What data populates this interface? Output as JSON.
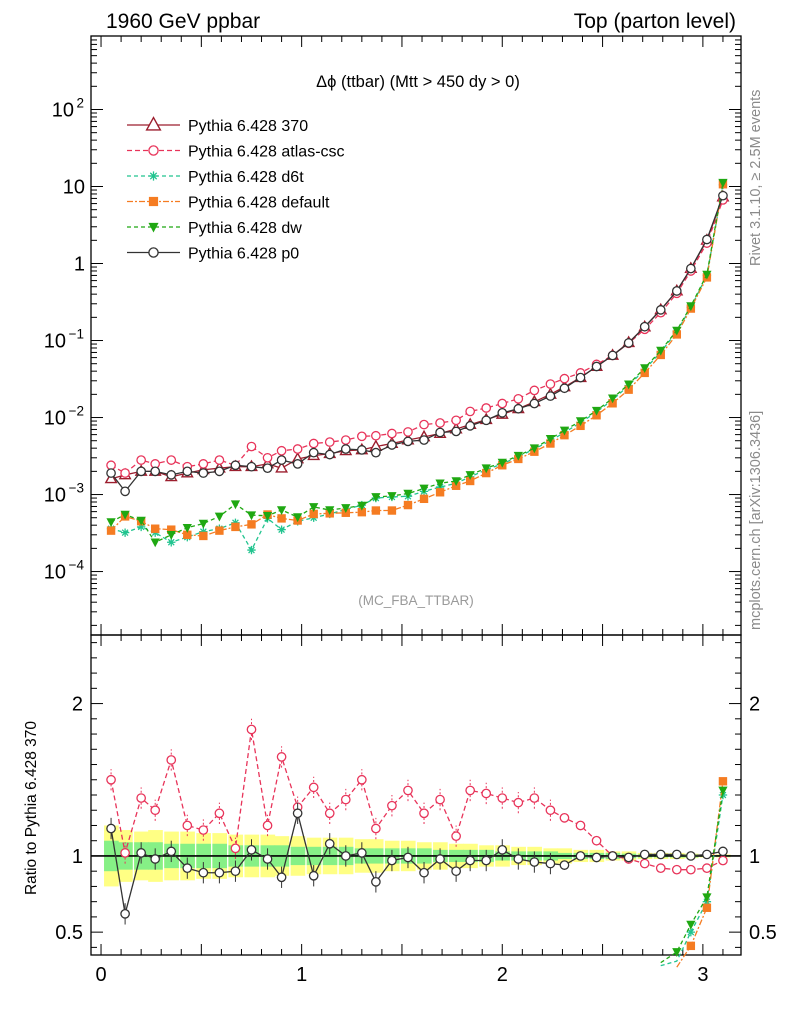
{
  "header": {
    "left": "1960 GeV ppbar",
    "right": "Top (parton level)"
  },
  "side_labels": {
    "rivet": "Rivet 3.1.10, ≥ 2.5M events",
    "source": "mcplots.cern.ch [arXiv:1306.3436]"
  },
  "chart_data": [
    {
      "type": "line",
      "title": "Δϕ (ttbar) (Mtt > 450 dy > 0)",
      "watermark": "(MC_FBA_TTBAR)",
      "yscale": "log",
      "ylim": [
        1.5e-05,
        900
      ],
      "xlim": [
        -0.05,
        3.19
      ],
      "y_ticks": [
        {
          "v": 100,
          "label": "10",
          "sup": "2"
        },
        {
          "v": 10,
          "label": "10",
          "sup": ""
        },
        {
          "v": 1,
          "label": "1",
          "sup": ""
        },
        {
          "v": 0.1,
          "label": "10",
          "sup": "−1"
        },
        {
          "v": 0.01,
          "label": "10",
          "sup": "−2"
        },
        {
          "v": 0.001,
          "label": "10",
          "sup": "−3"
        },
        {
          "v": 0.0001,
          "label": "10",
          "sup": "−4"
        }
      ],
      "legend_position": "top-left",
      "x": [
        0.05,
        0.12,
        0.2,
        0.27,
        0.35,
        0.43,
        0.51,
        0.59,
        0.67,
        0.75,
        0.83,
        0.9,
        0.98,
        1.06,
        1.14,
        1.22,
        1.3,
        1.37,
        1.45,
        1.53,
        1.61,
        1.69,
        1.77,
        1.84,
        1.92,
        2.0,
        2.08,
        2.16,
        2.24,
        2.31,
        2.39,
        2.47,
        2.55,
        2.63,
        2.71,
        2.79,
        2.87,
        2.94,
        3.02,
        3.1
      ],
      "series": [
        {
          "name": "Pythia 6.428 370",
          "color": "#9c1e2e",
          "marker": "triangle-open",
          "dash": "solid",
          "values": [
            0.0016,
            0.0018,
            0.002,
            0.002,
            0.0017,
            0.0019,
            0.0021,
            0.0022,
            0.0023,
            0.0023,
            0.0025,
            0.0022,
            0.0029,
            0.0032,
            0.0034,
            0.0037,
            0.0038,
            0.0042,
            0.0046,
            0.0051,
            0.0056,
            0.0062,
            0.0071,
            0.0081,
            0.0094,
            0.011,
            0.013,
            0.016,
            0.02,
            0.025,
            0.033,
            0.046,
            0.064,
            0.094,
            0.15,
            0.25,
            0.44,
            0.86,
            2.0,
            7.3
          ]
        },
        {
          "name": "Pythia 6.428 atlas-csc",
          "color": "#e8345a",
          "marker": "circle-open",
          "dash": "5,3",
          "values": [
            0.0024,
            0.0019,
            0.0028,
            0.0025,
            0.0028,
            0.0023,
            0.0025,
            0.0028,
            0.0024,
            0.0042,
            0.003,
            0.0037,
            0.0039,
            0.0046,
            0.0048,
            0.0051,
            0.0057,
            0.0058,
            0.0062,
            0.0065,
            0.0081,
            0.0085,
            0.0092,
            0.012,
            0.0133,
            0.0152,
            0.0175,
            0.0225,
            0.0272,
            0.032,
            0.038,
            0.049,
            0.064,
            0.092,
            0.14,
            0.23,
            0.41,
            0.8,
            1.84,
            6.7
          ]
        },
        {
          "name": "Pythia 6.428 d6t",
          "color": "#21c48f",
          "marker": "asterisk",
          "dash": "4,3",
          "values": [
            0.00036,
            0.00032,
            0.00038,
            0.00032,
            0.00024,
            0.00028,
            0.00033,
            0.00036,
            0.00043,
            0.00019,
            0.00049,
            0.00035,
            0.00045,
            0.0005,
            0.00056,
            0.00064,
            0.00073,
            0.0009,
            0.00093,
            0.00095,
            0.0011,
            0.00125,
            0.0014,
            0.0017,
            0.0021,
            0.0025,
            0.0031,
            0.0039,
            0.005,
            0.0064,
            0.0086,
            0.0118,
            0.017,
            0.026,
            0.042,
            0.071,
            0.13,
            0.27,
            0.7,
            10.5
          ]
        },
        {
          "name": "Pythia 6.428 default",
          "color": "#f57c22",
          "marker": "square",
          "dash": "6,2,2,2",
          "values": [
            0.00034,
            0.00052,
            0.00045,
            0.00036,
            0.00035,
            0.0003,
            0.00029,
            0.00034,
            0.00038,
            0.00041,
            0.00055,
            0.00049,
            0.00046,
            0.00056,
            0.00057,
            0.00058,
            0.00059,
            0.00062,
            0.00062,
            0.00073,
            0.00088,
            0.00107,
            0.0013,
            0.0015,
            0.0019,
            0.0024,
            0.0029,
            0.0036,
            0.0046,
            0.0059,
            0.0078,
            0.0107,
            0.0153,
            0.023,
            0.038,
            0.065,
            0.12,
            0.26,
            0.66,
            10.7
          ]
        },
        {
          "name": "Pythia 6.428 dw",
          "color": "#1fa812",
          "marker": "triangle-down",
          "dash": "4,3",
          "values": [
            0.00044,
            0.00055,
            0.00046,
            0.00024,
            0.0003,
            0.00037,
            0.00042,
            0.00052,
            0.00075,
            0.00054,
            0.00053,
            0.00063,
            0.00051,
            0.00069,
            0.00063,
            0.00067,
            0.00072,
            0.00093,
            0.00096,
            0.00103,
            0.0012,
            0.0014,
            0.0015,
            0.0018,
            0.0022,
            0.0026,
            0.0032,
            0.004,
            0.0053,
            0.0068,
            0.009,
            0.0123,
            0.0178,
            0.027,
            0.044,
            0.074,
            0.135,
            0.28,
            0.72,
            11.2
          ]
        },
        {
          "name": "Pythia 6.428 p0",
          "color": "#333333",
          "marker": "circle-open",
          "dash": "solid",
          "values": [
            0.0019,
            0.0011,
            0.002,
            0.002,
            0.0018,
            0.002,
            0.0019,
            0.002,
            0.0024,
            0.0023,
            0.0022,
            0.0028,
            0.0025,
            0.0035,
            0.0033,
            0.0039,
            0.0038,
            0.0035,
            0.0044,
            0.0049,
            0.0051,
            0.0064,
            0.0066,
            0.0078,
            0.0092,
            0.0115,
            0.013,
            0.0152,
            0.019,
            0.024,
            0.033,
            0.046,
            0.064,
            0.093,
            0.151,
            0.25,
            0.44,
            0.86,
            2.05,
            7.6
          ]
        }
      ]
    },
    {
      "type": "line",
      "ylabel": "Ratio to Pythia 6.428 370",
      "ylim": [
        0.35,
        2.45
      ],
      "xlim": [
        -0.05,
        3.19
      ],
      "x_ticks": [
        0,
        1,
        2,
        3
      ],
      "y_ticks": [
        {
          "v": 0.5,
          "label": "0.5"
        },
        {
          "v": 1,
          "label": "1"
        },
        {
          "v": 2,
          "label": "2"
        }
      ],
      "x": [
        0.05,
        0.12,
        0.2,
        0.27,
        0.35,
        0.43,
        0.51,
        0.59,
        0.67,
        0.75,
        0.83,
        0.9,
        0.98,
        1.06,
        1.14,
        1.22,
        1.3,
        1.37,
        1.45,
        1.53,
        1.61,
        1.69,
        1.77,
        1.84,
        1.92,
        2.0,
        2.08,
        2.16,
        2.24,
        2.31,
        2.39,
        2.47,
        2.55,
        2.63,
        2.71,
        2.79,
        2.87,
        2.94,
        3.02,
        3.1
      ],
      "band_outer": [
        0.2,
        0.17,
        0.16,
        0.17,
        0.16,
        0.16,
        0.15,
        0.15,
        0.14,
        0.14,
        0.14,
        0.13,
        0.13,
        0.12,
        0.12,
        0.12,
        0.11,
        0.11,
        0.1,
        0.1,
        0.09,
        0.09,
        0.08,
        0.08,
        0.07,
        0.07,
        0.06,
        0.06,
        0.05,
        0.05,
        0.04,
        0.04,
        0.03,
        0.03,
        0.02,
        0.02,
        0.02,
        0.015,
        0.01,
        0.01
      ],
      "band_inner": [
        0.1,
        0.09,
        0.09,
        0.09,
        0.08,
        0.08,
        0.08,
        0.08,
        0.07,
        0.07,
        0.07,
        0.07,
        0.06,
        0.06,
        0.06,
        0.06,
        0.05,
        0.05,
        0.05,
        0.05,
        0.05,
        0.04,
        0.04,
        0.04,
        0.04,
        0.03,
        0.03,
        0.03,
        0.03,
        0.02,
        0.02,
        0.02,
        0.02,
        0.015,
        0.01,
        0.01,
        0.01,
        0.01,
        0.005,
        0.005
      ],
      "series": [
        {
          "name": "Pythia 6.428 atlas-csc",
          "color": "#e8345a",
          "marker": "circle-open",
          "dash": "5,3",
          "values": [
            1.5,
            1.02,
            1.38,
            1.3,
            1.63,
            1.2,
            1.17,
            1.28,
            1.05,
            1.83,
            1.2,
            1.65,
            1.32,
            1.45,
            1.28,
            1.37,
            1.5,
            1.18,
            1.33,
            1.43,
            1.28,
            1.37,
            1.13,
            1.43,
            1.41,
            1.38,
            1.35,
            1.38,
            1.3,
            1.25,
            1.2,
            1.1,
            1.0,
            0.98,
            0.95,
            0.92,
            0.91,
            0.91,
            0.92,
            0.97
          ]
        },
        {
          "name": "Pythia 6.428 d6t",
          "color": "#21c48f",
          "marker": "asterisk",
          "dash": "4,3",
          "values": [
            null,
            null,
            null,
            null,
            null,
            null,
            null,
            null,
            null,
            null,
            null,
            null,
            null,
            null,
            null,
            null,
            null,
            null,
            null,
            null,
            null,
            null,
            null,
            null,
            null,
            null,
            null,
            null,
            null,
            null,
            null,
            null,
            null,
            null,
            null,
            0.28,
            0.31,
            0.5,
            0.7,
            1.4
          ]
        },
        {
          "name": "Pythia 6.428 default",
          "color": "#f57c22",
          "marker": "square",
          "dash": "6,2,2,2",
          "values": [
            null,
            null,
            null,
            null,
            null,
            null,
            null,
            null,
            null,
            null,
            null,
            null,
            null,
            null,
            null,
            null,
            null,
            null,
            null,
            null,
            null,
            null,
            null,
            null,
            null,
            null,
            null,
            null,
            null,
            null,
            null,
            null,
            null,
            null,
            null,
            null,
            0.27,
            0.41,
            0.66,
            1.49
          ]
        },
        {
          "name": "Pythia 6.428 dw",
          "color": "#1fa812",
          "marker": "triangle-down",
          "dash": "4,3",
          "values": [
            null,
            null,
            null,
            null,
            null,
            null,
            null,
            null,
            null,
            null,
            null,
            null,
            null,
            null,
            null,
            null,
            null,
            null,
            null,
            null,
            null,
            null,
            null,
            null,
            null,
            null,
            null,
            null,
            null,
            null,
            null,
            null,
            null,
            null,
            null,
            0.3,
            0.37,
            0.55,
            0.73,
            1.43
          ]
        },
        {
          "name": "Pythia 6.428 p0",
          "color": "#333333",
          "marker": "circle-open",
          "dash": "solid",
          "values": [
            1.18,
            0.62,
            1.02,
            0.98,
            1.03,
            0.92,
            0.89,
            0.89,
            0.9,
            1.04,
            0.98,
            0.86,
            1.28,
            0.87,
            1.08,
            1.0,
            1.02,
            0.83,
            0.97,
            0.99,
            0.89,
            0.98,
            0.9,
            0.97,
            0.97,
            1.04,
            0.98,
            0.96,
            0.95,
            0.94,
            1.0,
            0.99,
            1.0,
            0.99,
            1.01,
            1.01,
            1.01,
            1.0,
            1.01,
            1.03
          ]
        }
      ]
    }
  ]
}
